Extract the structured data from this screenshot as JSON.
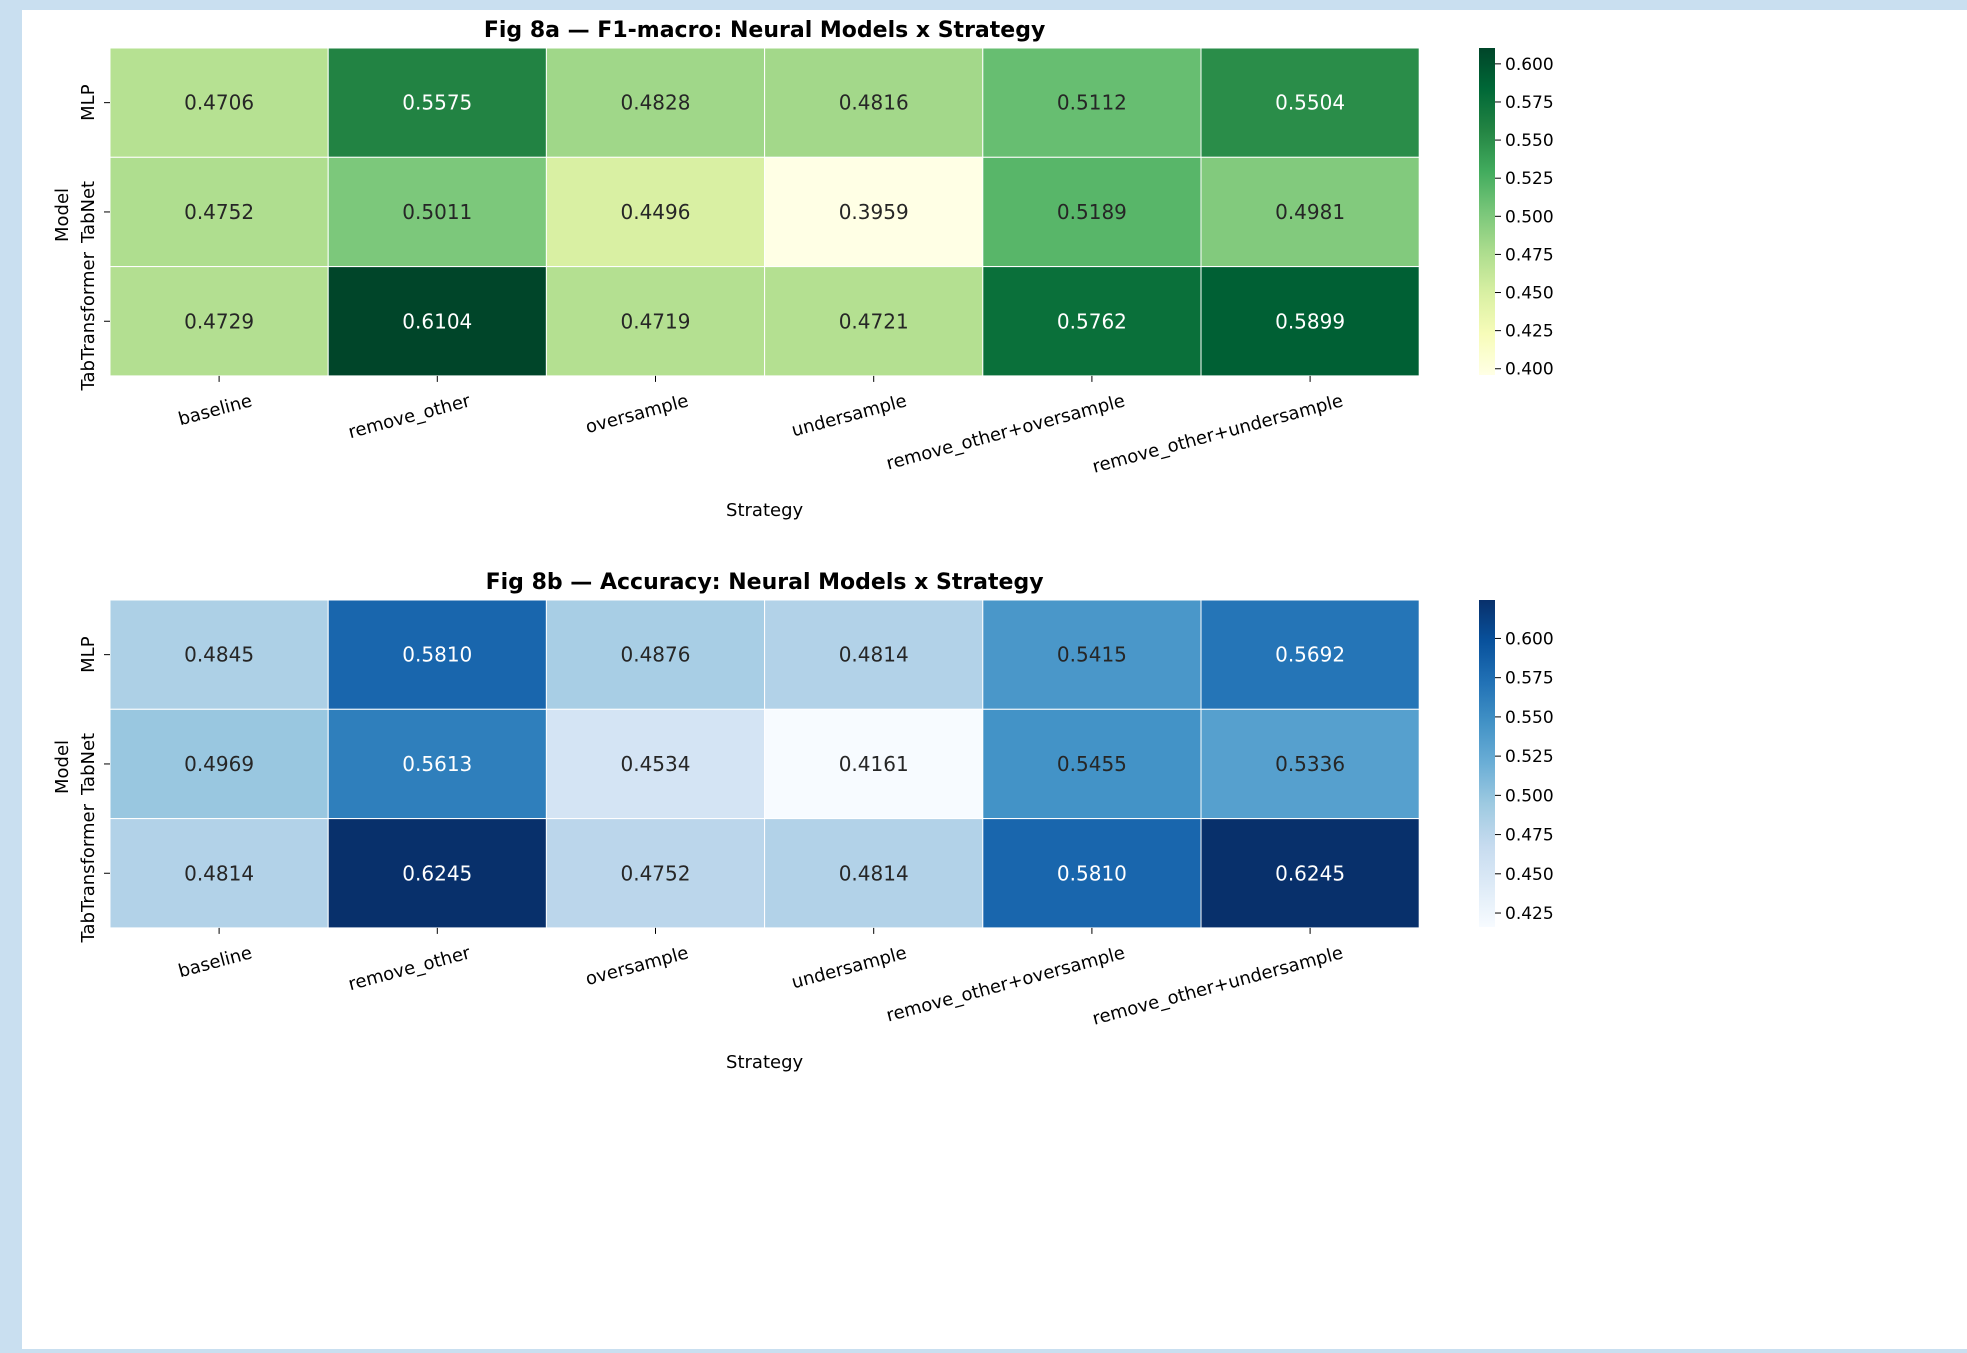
{
  "chart_data": [
    {
      "type": "heatmap",
      "title": "Fig 8a — F1-macro: Neural Models x Strategy",
      "xlabel": "Strategy",
      "ylabel": "Model",
      "categories": [
        "baseline",
        "remove_other",
        "oversample",
        "undersample",
        "remove_other+oversample",
        "remove_other+undersample"
      ],
      "rows": [
        "MLP",
        "TabNet",
        "TabTransformer"
      ],
      "values": [
        [
          0.4706,
          0.5575,
          0.4828,
          0.4816,
          0.5112,
          0.5504
        ],
        [
          0.4752,
          0.5011,
          0.4496,
          0.3959,
          0.5189,
          0.4981
        ],
        [
          0.4729,
          0.6104,
          0.4719,
          0.4721,
          0.5762,
          0.5899
        ]
      ],
      "value_labels": [
        [
          "0.4706",
          "0.5575",
          "0.4828",
          "0.4816",
          "0.5112",
          "0.5504"
        ],
        [
          "0.4752",
          "0.5011",
          "0.4496",
          "0.3959",
          "0.5189",
          "0.4981"
        ],
        [
          "0.4729",
          "0.6104",
          "0.4719",
          "0.4721",
          "0.5762",
          "0.5899"
        ]
      ],
      "colormap": "Greens",
      "colorbar_range": [
        0.3959,
        0.6104
      ],
      "colorbar_ticks": [
        "0.400",
        "0.425",
        "0.450",
        "0.475",
        "0.500",
        "0.525",
        "0.550",
        "0.575",
        "0.600"
      ],
      "grid": false,
      "legend": "colorbar right"
    },
    {
      "type": "heatmap",
      "title": "Fig 8b — Accuracy: Neural Models x Strategy",
      "xlabel": "Strategy",
      "ylabel": "Model",
      "categories": [
        "baseline",
        "remove_other",
        "oversample",
        "undersample",
        "remove_other+oversample",
        "remove_other+undersample"
      ],
      "rows": [
        "MLP",
        "TabNet",
        "TabTransformer"
      ],
      "values": [
        [
          0.4845,
          0.581,
          0.4876,
          0.4814,
          0.5415,
          0.5692
        ],
        [
          0.4969,
          0.5613,
          0.4534,
          0.4161,
          0.5455,
          0.5336
        ],
        [
          0.4814,
          0.6245,
          0.4752,
          0.4814,
          0.581,
          0.6245
        ]
      ],
      "value_labels": [
        [
          "0.4845",
          "0.5810",
          "0.4876",
          "0.4814",
          "0.5415",
          "0.5692"
        ],
        [
          "0.4969",
          "0.5613",
          "0.4534",
          "0.4161",
          "0.5455",
          "0.5336"
        ],
        [
          "0.4814",
          "0.6245",
          "0.4752",
          "0.4814",
          "0.5810",
          "0.6245"
        ]
      ],
      "colormap": "Blues",
      "colorbar_range": [
        0.4161,
        0.6245
      ],
      "colorbar_ticks": [
        "0.425",
        "0.450",
        "0.475",
        "0.500",
        "0.525",
        "0.550",
        "0.575",
        "0.600"
      ],
      "grid": false,
      "legend": "colorbar right"
    }
  ]
}
